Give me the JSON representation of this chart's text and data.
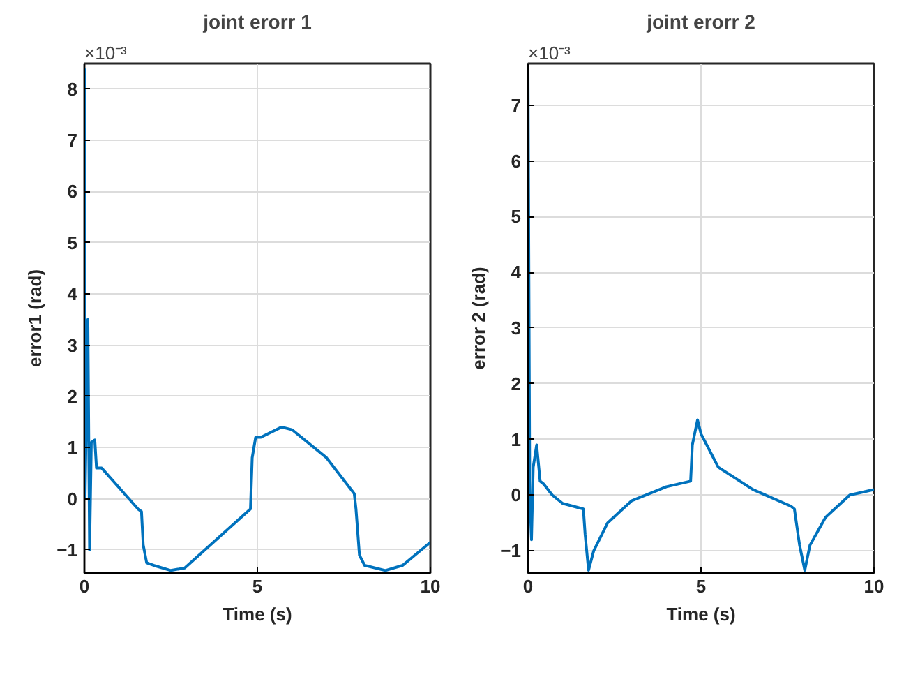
{
  "chart_data": [
    {
      "type": "line",
      "title": "joint erorr 1",
      "xlabel": "Time (s)",
      "ylabel": "error1 (rad)",
      "annotations": [
        "×10⁻³"
      ],
      "xlim": [
        0,
        10
      ],
      "xticks": [
        0,
        5,
        10
      ],
      "ylim": [
        -1.45,
        8.5
      ],
      "yticks": [
        -1,
        0,
        1,
        2,
        3,
        4,
        5,
        6,
        7,
        8
      ],
      "grid": true,
      "x": [
        0,
        0.02,
        0.1,
        0.15,
        0.2,
        0.3,
        0.35,
        0.5,
        1.55,
        1.65,
        1.7,
        1.8,
        2.0,
        2.5,
        2.9,
        4.8,
        4.85,
        4.95,
        5.1,
        5.7,
        6.0,
        7.0,
        7.8,
        7.85,
        7.95,
        8.1,
        8.7,
        9.2,
        10
      ],
      "series": [
        {
          "color": "#0072bd",
          "values": [
            8.4,
            0,
            3.5,
            -1,
            1.1,
            1.15,
            0.6,
            0.6,
            -0.2,
            -0.25,
            -0.9,
            -1.25,
            -1.3,
            -1.4,
            -1.35,
            -0.2,
            0.8,
            1.2,
            1.2,
            1.4,
            1.35,
            0.8,
            0.1,
            -0.2,
            -1.1,
            -1.3,
            -1.4,
            -1.3,
            -0.85
          ]
        }
      ]
    },
    {
      "type": "line",
      "title": "joint erorr 2",
      "xlabel": "Time (s)",
      "ylabel": "error 2 (rad)",
      "annotations": [
        "×10⁻³"
      ],
      "xlim": [
        0,
        10
      ],
      "xticks": [
        0,
        5,
        10
      ],
      "ylim": [
        -1.4,
        7.75
      ],
      "yticks": [
        -1,
        0,
        1,
        2,
        3,
        4,
        5,
        6,
        7
      ],
      "grid": true,
      "x": [
        0,
        0.05,
        0.1,
        0.15,
        0.25,
        0.35,
        0.45,
        0.7,
        1.0,
        1.6,
        1.65,
        1.75,
        1.9,
        2.3,
        3.0,
        4.0,
        4.7,
        4.75,
        4.9,
        5.0,
        5.5,
        6.5,
        7.6,
        7.7,
        7.85,
        8.0,
        8.15,
        8.6,
        9.3,
        10
      ],
      "series": [
        {
          "color": "#0072bd",
          "values": [
            7.7,
            0,
            -0.8,
            0.5,
            0.9,
            0.25,
            0.2,
            0,
            -0.15,
            -0.25,
            -0.7,
            -1.35,
            -1.0,
            -0.5,
            -0.1,
            0.15,
            0.25,
            0.9,
            1.35,
            1.1,
            0.5,
            0.1,
            -0.2,
            -0.25,
            -0.9,
            -1.35,
            -0.9,
            -0.4,
            0,
            0.1
          ]
        }
      ]
    }
  ]
}
